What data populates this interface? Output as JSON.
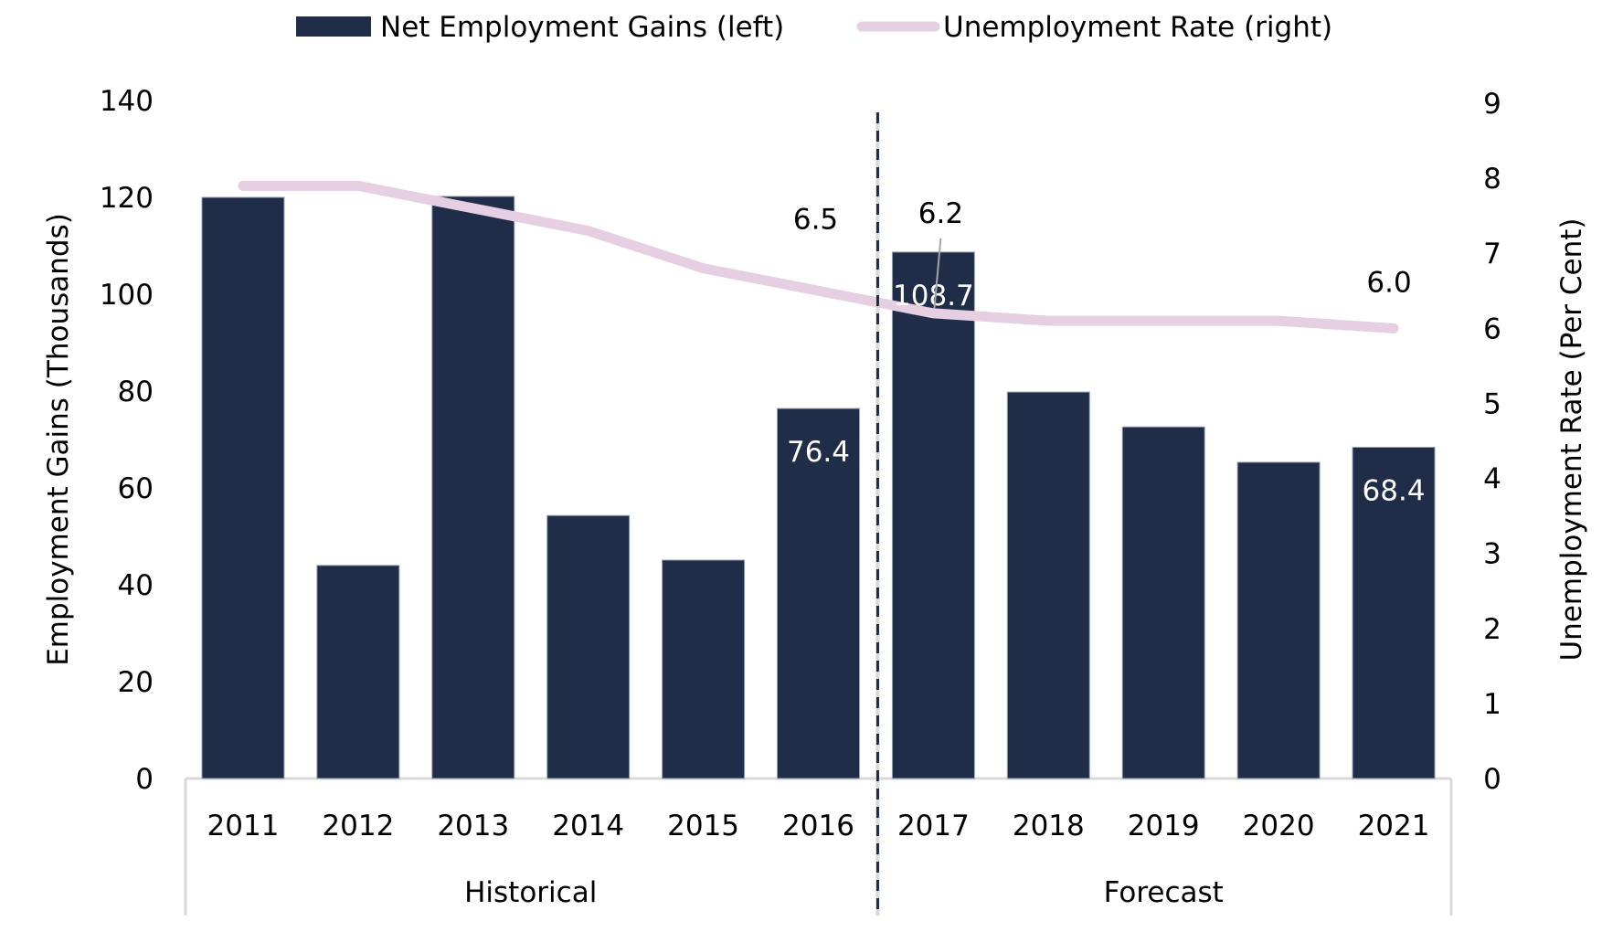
{
  "chart_data": {
    "type": "bar",
    "title": "",
    "categories": [
      "2011",
      "2012",
      "2013",
      "2014",
      "2015",
      "2016",
      "2017",
      "2018",
      "2019",
      "2020",
      "2021"
    ],
    "groups": [
      {
        "label": "Historical",
        "from": "2011",
        "to": "2016"
      },
      {
        "label": "Forecast",
        "from": "2017",
        "to": "2021"
      }
    ],
    "series": [
      {
        "name": "Net Employment Gains (left)",
        "type": "bar",
        "axis": "left",
        "color": "#1f2d48",
        "values": [
          120,
          44,
          120.2,
          54.3,
          45.1,
          76.4,
          108.7,
          79.8,
          72.6,
          65.3,
          68.4
        ],
        "data_labels": {
          "2016": "76.4",
          "2017": "108.7",
          "2021": "68.4"
        }
      },
      {
        "name": "Unemployment Rate (right)",
        "type": "line",
        "axis": "right",
        "color": "#e6cfe2",
        "values": [
          7.9,
          7.9,
          7.6,
          7.3,
          6.8,
          6.5,
          6.2,
          6.1,
          6.1,
          6.1,
          6.0
        ],
        "data_labels": {
          "2016": "6.5",
          "2017": "6.2",
          "2021": "6.0"
        }
      }
    ],
    "y_left": {
      "label": "Employment Gains (Thousands)",
      "ylim": [
        0,
        140
      ],
      "ticks": [
        "0",
        "20",
        "40",
        "60",
        "80",
        "100",
        "120",
        "140"
      ]
    },
    "y_right": {
      "label": "Unemployment Rate (Per Cent)",
      "ylim": [
        0,
        9
      ],
      "ticks": [
        "0",
        "1",
        "2",
        "3",
        "4",
        "5",
        "6",
        "7",
        "8",
        "9"
      ]
    },
    "divider_after": "2016",
    "divider_color": "#1f2d48",
    "frame_color": "#d9d9d9",
    "legend_position": "top-center",
    "grid": false
  }
}
